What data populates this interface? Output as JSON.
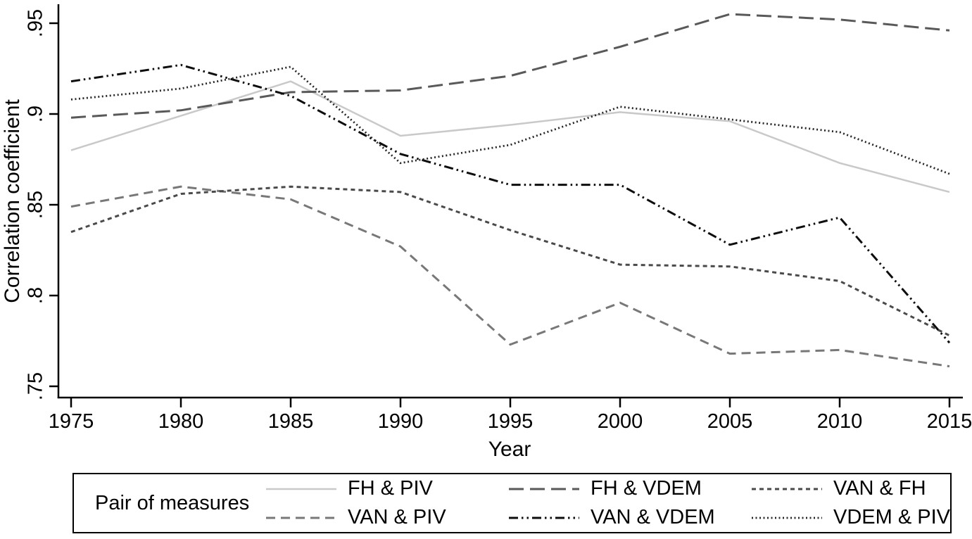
{
  "chart_data": {
    "type": "line",
    "title": "",
    "xlabel": "Year",
    "ylabel": "Correlation coefficient",
    "x": [
      1975,
      1980,
      1985,
      1990,
      1995,
      2000,
      2005,
      2010,
      2015
    ],
    "x_tick_labels": [
      "1975",
      "1980",
      "1985",
      "1990",
      "1995",
      "2000",
      "2005",
      "2010",
      "2015"
    ],
    "y_tick_labels": [
      ".75",
      ".8",
      ".85",
      ".9",
      ".95"
    ],
    "y_tick_values": [
      0.75,
      0.8,
      0.85,
      0.9,
      0.95
    ],
    "ylim": [
      0.744,
      0.958
    ],
    "xlim": [
      1974.5,
      2015.5
    ],
    "grid": false,
    "legend_position": "bottom",
    "legend_title": "Pair of measures",
    "series": [
      {
        "name": "FH & PIV",
        "style": "solid",
        "color": "#c9c9c9",
        "width": 2.5,
        "values": [
          0.88,
          0.899,
          0.918,
          0.888,
          0.894,
          0.901,
          0.896,
          0.873,
          0.857
        ]
      },
      {
        "name": "VAN & PIV",
        "style": "medium-dash",
        "color": "#787878",
        "width": 3,
        "values": [
          0.849,
          0.86,
          0.853,
          0.827,
          0.773,
          0.796,
          0.768,
          0.77,
          0.761
        ]
      },
      {
        "name": "FH & VDEM",
        "style": "long-dash",
        "color": "#595959",
        "width": 3,
        "values": [
          0.898,
          0.902,
          0.912,
          0.913,
          0.921,
          0.937,
          0.955,
          0.952,
          0.946
        ]
      },
      {
        "name": "VAN & VDEM",
        "style": "dash-dot-dot",
        "color": "#0d0d0d",
        "width": 3,
        "values": [
          0.918,
          0.927,
          0.91,
          0.878,
          0.861,
          0.861,
          0.828,
          0.843,
          0.774
        ]
      },
      {
        "name": "VAN & FH",
        "style": "short-dash",
        "color": "#4a4a4a",
        "width": 3,
        "values": [
          0.835,
          0.856,
          0.86,
          0.857,
          0.836,
          0.817,
          0.816,
          0.808,
          0.778
        ]
      },
      {
        "name": "VDEM & PIV",
        "style": "fine-dot",
        "color": "#262626",
        "width": 2.8,
        "values": [
          0.908,
          0.914,
          0.926,
          0.873,
          0.883,
          0.904,
          0.897,
          0.89,
          0.867
        ]
      }
    ]
  }
}
